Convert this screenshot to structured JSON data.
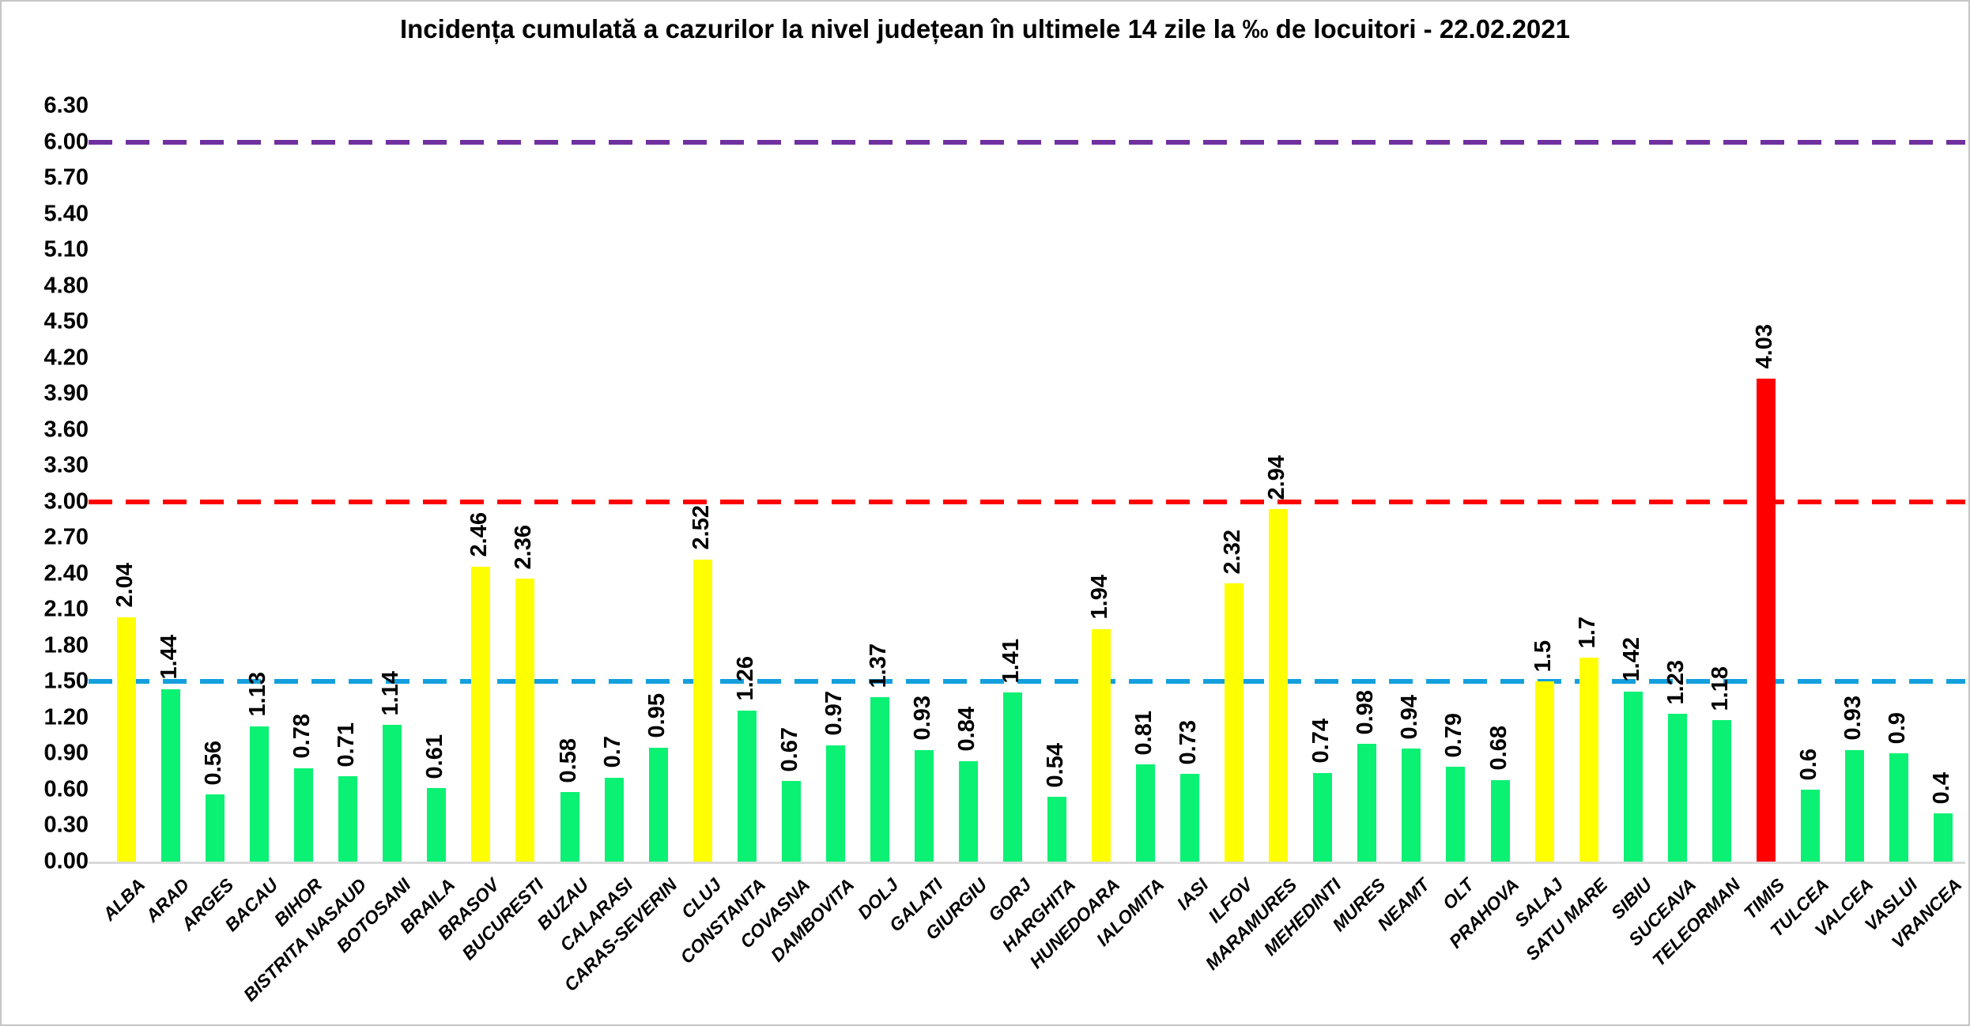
{
  "title": "Incidența cumulată a cazurilor la nivel județean în ultimele 14 zile la ‰ de locuitori - 22.02.2021",
  "chart_data": {
    "type": "bar",
    "title": "Incidența cumulată a cazurilor la nivel județean în ultimele 14 zile la ‰ de locuitori - 22.02.2021",
    "xlabel": "",
    "ylabel": "",
    "ylim": [
      0,
      6.3
    ],
    "ytick_step": 0.3,
    "ytick_labels": [
      "0.00",
      "0.30",
      "0.60",
      "0.90",
      "1.20",
      "1.50",
      "1.80",
      "2.10",
      "2.40",
      "2.70",
      "3.00",
      "3.30",
      "3.60",
      "3.90",
      "4.20",
      "4.50",
      "4.80",
      "5.10",
      "5.40",
      "5.70",
      "6.00",
      "6.30"
    ],
    "grid": false,
    "legend": false,
    "categories": [
      "ALBA",
      "ARAD",
      "ARGES",
      "BACAU",
      "BIHOR",
      "BISTRITA NASAUD",
      "BOTOSANI",
      "BRAILA",
      "BRASOV",
      "BUCURESTI",
      "BUZAU",
      "CALARASI",
      "CARAS-SEVERIN",
      "CLUJ",
      "CONSTANTA",
      "COVASNA",
      "DAMBOVITA",
      "DOLJ",
      "GALATI",
      "GIURGIU",
      "GORJ",
      "HARGHITA",
      "HUNEDOARA",
      "IALOMITA",
      "IASI",
      "ILFOV",
      "MARAMURES",
      "MEHEDINTI",
      "MURES",
      "NEAMT",
      "OLT",
      "PRAHOVA",
      "SALAJ",
      "SATU MARE",
      "SIBIU",
      "SUCEAVA",
      "TELEORMAN",
      "TIMIS",
      "TULCEA",
      "VALCEA",
      "VASLUI",
      "VRANCEA"
    ],
    "values": [
      2.04,
      1.44,
      0.56,
      1.13,
      0.78,
      0.71,
      1.14,
      0.61,
      2.46,
      2.36,
      0.58,
      0.7,
      0.95,
      2.52,
      1.26,
      0.67,
      0.97,
      1.37,
      0.93,
      0.84,
      1.41,
      0.54,
      1.94,
      0.81,
      0.73,
      2.32,
      2.94,
      0.74,
      0.98,
      0.94,
      0.79,
      0.68,
      1.5,
      1.7,
      1.42,
      1.23,
      1.18,
      4.03,
      0.6,
      0.93,
      0.9,
      0.4
    ],
    "value_labels": [
      "2.04",
      "1.44",
      "0.56",
      "1.13",
      "0.78",
      "0.71",
      "1.14",
      "0.61",
      "2.46",
      "2.36",
      "0.58",
      "0.7",
      "0.95",
      "2.52",
      "1.26",
      "0.67",
      "0.97",
      "1.37",
      "0.93",
      "0.84",
      "1.41",
      "0.54",
      "1.94",
      "0.81",
      "0.73",
      "2.32",
      "2.94",
      "0.74",
      "0.98",
      "0.94",
      "0.79",
      "0.68",
      "1.5",
      "1.7",
      "1.42",
      "1.23",
      "1.18",
      "4.03",
      "0.6",
      "0.93",
      "0.9",
      "0.4"
    ],
    "bar_colors": [
      "#ffff00",
      "#0bf173",
      "#0bf173",
      "#0bf173",
      "#0bf173",
      "#0bf173",
      "#0bf173",
      "#0bf173",
      "#ffff00",
      "#ffff00",
      "#0bf173",
      "#0bf173",
      "#0bf173",
      "#ffff00",
      "#0bf173",
      "#0bf173",
      "#0bf173",
      "#0bf173",
      "#0bf173",
      "#0bf173",
      "#0bf173",
      "#0bf173",
      "#ffff00",
      "#0bf173",
      "#0bf173",
      "#ffff00",
      "#ffff00",
      "#0bf173",
      "#0bf173",
      "#0bf173",
      "#0bf173",
      "#0bf173",
      "#ffff00",
      "#ffff00",
      "#0bf173",
      "#0bf173",
      "#0bf173",
      "#ff0000",
      "#0bf173",
      "#0bf173",
      "#0bf173",
      "#0bf173"
    ],
    "color_meaning": {
      "green_below_1_5": "#0bf173",
      "yellow_1_5_to_3": "#ffff00",
      "red_above_3": "#ff0000"
    },
    "reference_lines": [
      {
        "value": 1.5,
        "color": "#149fdd",
        "style": "dashed"
      },
      {
        "value": 3.0,
        "color": "#ff0000",
        "style": "dashed"
      },
      {
        "value": 6.0,
        "color": "#7030a0",
        "style": "dashed"
      }
    ],
    "axis_line_color": "#d9d9d9"
  }
}
